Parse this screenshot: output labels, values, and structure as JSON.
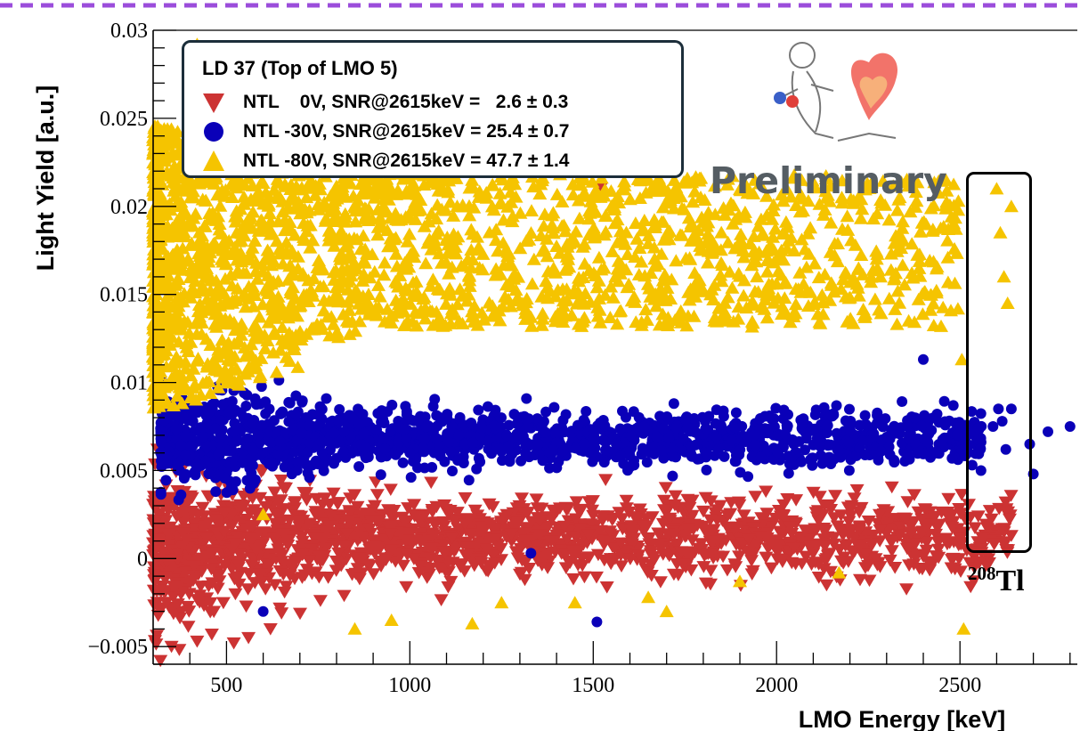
{
  "chart_data": {
    "type": "scatter",
    "title": "",
    "xlabel": "LMO Energy [keV]",
    "ylabel": "Light Yield [a.u.]",
    "xlim": [
      300,
      2820
    ],
    "ylim": [
      -0.006,
      0.03
    ],
    "xticks": [
      500,
      1000,
      1500,
      2000,
      2500
    ],
    "xtick_labels": [
      "500",
      "1000",
      "1500",
      "2000",
      "2500"
    ],
    "yticks": [
      -0.005,
      0,
      0.005,
      0.01,
      0.015,
      0.02,
      0.025,
      0.03
    ],
    "ytick_labels": [
      "−0.005",
      "0",
      "0.005",
      "0.01",
      "0.015",
      "0.02",
      "0.025",
      "0.03"
    ],
    "grid": false,
    "legend": {
      "title": "LD 37 (Top of LMO 5)",
      "placement": "top-left"
    },
    "series": [
      {
        "label": "NTL    0V, SNR@2615keV =   2.6 ± 0.3",
        "marker": "triangle-down",
        "color": "#cc3333",
        "band": {
          "x_range": [
            300,
            2640
          ],
          "center_y": 0.0012,
          "spread_y": 0.0025
        },
        "points": [
          [
            320,
            -0.0058
          ],
          [
            350,
            -0.005
          ],
          [
            420,
            -0.0047
          ],
          [
            460,
            -0.0043
          ],
          [
            520,
            -0.0048
          ],
          [
            560,
            -0.0045
          ],
          [
            620,
            -0.004
          ],
          [
            1520,
            0.021
          ],
          [
            2560,
            0.0012
          ],
          [
            2620,
            0.0015
          ],
          [
            2640,
            0.0013
          ]
        ]
      },
      {
        "label": "NTL -30V, SNR@2615keV = 25.4 ± 0.7",
        "marker": "circle",
        "color": "#0a00b8",
        "band": {
          "x_range": [
            320,
            2560
          ],
          "center_y": 0.0068,
          "spread_y": 0.0018
        },
        "points": [
          [
            600,
            -0.003
          ],
          [
            1510,
            -0.0036
          ],
          [
            1330,
            0.0003
          ],
          [
            2520,
            0.007
          ],
          [
            2590,
            0.0075
          ],
          [
            2605,
            0.0085
          ],
          [
            2615,
            0.0078
          ],
          [
            2625,
            0.0062
          ],
          [
            2640,
            0.0085
          ],
          [
            2690,
            0.0065
          ],
          [
            2700,
            0.0048
          ],
          [
            2740,
            0.0072
          ],
          [
            2800,
            0.0075
          ],
          [
            2400,
            0.0113
          ]
        ]
      },
      {
        "label": "NTL -80V, SNR@2615keV = 47.7 ± 1.4",
        "marker": "triangle-up",
        "color": "#f5c400",
        "band": {
          "x_range": [
            300,
            2500
          ],
          "center_y": 0.0175,
          "spread_y": 0.006
        },
        "points": [
          [
            420,
            0.0292
          ],
          [
            600,
            0.0025
          ],
          [
            850,
            -0.004
          ],
          [
            950,
            -0.0035
          ],
          [
            1170,
            -0.0037
          ],
          [
            1250,
            -0.0025
          ],
          [
            1450,
            -0.0025
          ],
          [
            1650,
            -0.0022
          ],
          [
            1700,
            -0.003
          ],
          [
            1900,
            -0.0013
          ],
          [
            2170,
            -0.0008
          ],
          [
            2510,
            -0.004
          ],
          [
            2505,
            0.0113
          ],
          [
            2600,
            0.021
          ],
          [
            2610,
            0.0185
          ],
          [
            2620,
            0.016
          ],
          [
            2630,
            0.0145
          ],
          [
            2640,
            0.02
          ]
        ]
      }
    ],
    "annotations": [
      {
        "text": "Preliminary"
      },
      {
        "text": "Tl",
        "superscript": "208",
        "note_box": {
          "x_range": [
            2515,
            2700
          ],
          "y_range": [
            0.0,
            0.0215
          ]
        }
      }
    ]
  }
}
